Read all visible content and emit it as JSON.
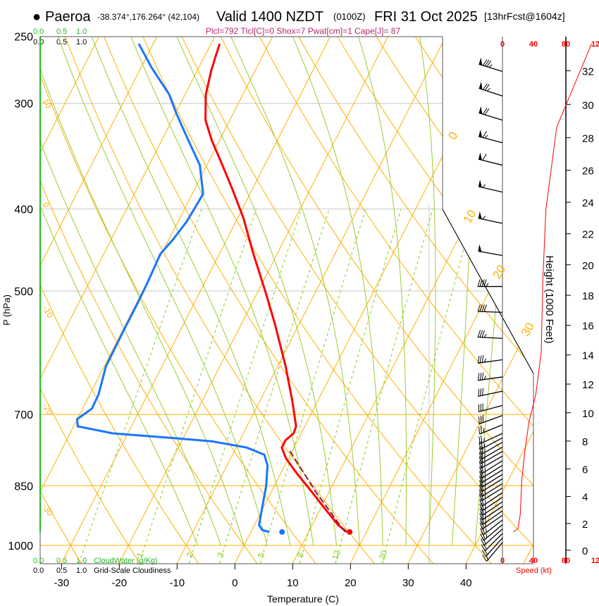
{
  "header": {
    "bullet": "●",
    "station": "Paeroa",
    "coords": "-38.374°,176.264° (42,104)",
    "valid": "Valid 1400 NZDT",
    "utc": "(0100Z)",
    "date": "FRI 31 Oct 2025",
    "forecast": "[13hrFcst@1604z]",
    "indices": "Plcl=792 Tlcl[C]=0 Shox=7 Pwat[cm]=1 Cape[J]= 87"
  },
  "cloud_scale": {
    "green_labels": [
      "0.0",
      "0.5",
      "1.0"
    ],
    "black_labels": [
      "0.0",
      "0.5",
      "1.0"
    ],
    "cloudwater_label": "CloudWater (g/Kg)",
    "cloudiness_label": "Grid-Scale Cloudiness"
  },
  "colors": {
    "temperature": "#ff0000",
    "dewpoint": "#1a75ff",
    "parcel": "#8b1a5a",
    "isotherm": "#ffb000",
    "moist_adiabat": "#99cc33",
    "mixing_ratio": "#88cc22",
    "indices": "#b5286a",
    "cloudwater": "#22aa22"
  },
  "chart_data": {
    "type": "skew-t",
    "xlabel": "Temperature (C)",
    "ylabel": "P (hPa)",
    "height_label": "Height (1000 Feet)",
    "speed_label": "Speed (kt)",
    "x_ticks": [
      -30,
      -20,
      -10,
      0,
      10,
      20,
      30,
      40
    ],
    "p_ticks": [
      250,
      300,
      400,
      500,
      700,
      850,
      1000
    ],
    "p_range": [
      250,
      1050
    ],
    "height_ticks": [
      0,
      2,
      4,
      6,
      8,
      10,
      12,
      14,
      16,
      18,
      20,
      22,
      24,
      26,
      28,
      30,
      32
    ],
    "speed_ticks": [
      "0",
      "40",
      "80",
      "12"
    ],
    "isotherm_labels": [
      {
        "T": 0,
        "p": 332
      },
      {
        "T": 10,
        "p": 417
      },
      {
        "T": 20,
        "p": 485
      },
      {
        "T": 30,
        "p": 567
      }
    ],
    "theta_labels": [
      "10",
      "0",
      "-10",
      "-20",
      "-30"
    ],
    "mixing_ratio_labels": [
      "1",
      "2",
      "3",
      "5",
      "8",
      "12",
      "20"
    ],
    "temperature": {
      "p": [
        255,
        274,
        293,
        314,
        332,
        355,
        380,
        410,
        452,
        500,
        547,
        614,
        676,
        723,
        737,
        751,
        766,
        788,
        819,
        859,
        902,
        946,
        964
      ],
      "T": [
        -48.5,
        -47.6,
        -46.4,
        -44.2,
        -41.3,
        -37.3,
        -33.3,
        -29.0,
        -24.1,
        -18.8,
        -14.2,
        -8.6,
        -4.3,
        -1.5,
        -1.3,
        -2.1,
        -2.1,
        -0.5,
        2.5,
        6.5,
        10.5,
        14.5,
        16.6
      ]
    },
    "dewpoint": {
      "p": [
        255,
        272,
        293,
        308,
        329,
        355,
        384,
        414,
        435,
        452,
        488,
        517,
        558,
        614,
        663,
        689,
        709,
        723,
        737,
        747,
        753,
        766,
        781,
        804,
        851,
        902,
        946,
        959,
        964
      ],
      "T": [
        -62.5,
        -58.2,
        -52.7,
        -49.9,
        -45.9,
        -41.2,
        -38.1,
        -38.5,
        -39.3,
        -40.2,
        -39.9,
        -39.8,
        -39.8,
        -39.7,
        -38.5,
        -38.4,
        -40.0,
        -39.3,
        -32.6,
        -21.2,
        -14.8,
        -8.2,
        -4.5,
        -3.0,
        -1.4,
        -0.2,
        0.8,
        1.8,
        3.2
      ]
    },
    "parcel": {
      "p": [
        964,
        868,
        769
      ],
      "T": [
        16.3,
        8.0,
        -0.8
      ]
    },
    "surface": {
      "p": 964,
      "T": 17.1,
      "Td": 5.4
    },
    "mixing_ratio_lines": [
      0.4,
      1,
      2,
      3,
      5,
      8,
      12,
      20
    ],
    "wind": [
      {
        "p": 275,
        "dir": 287,
        "spd": 85
      },
      {
        "p": 294,
        "dir": 288,
        "spd": 75
      },
      {
        "p": 314,
        "dir": 287,
        "spd": 70
      },
      {
        "p": 334,
        "dir": 285,
        "spd": 65
      },
      {
        "p": 355,
        "dir": 284,
        "spd": 60
      },
      {
        "p": 382,
        "dir": 283,
        "spd": 55
      },
      {
        "p": 416,
        "dir": 282,
        "spd": 55
      },
      {
        "p": 454,
        "dir": 280,
        "spd": 50
      },
      {
        "p": 494,
        "dir": 270,
        "spd": 45
      },
      {
        "p": 530,
        "dir": 272,
        "spd": 40
      },
      {
        "p": 569,
        "dir": 273,
        "spd": 35
      },
      {
        "p": 603,
        "dir": 262,
        "spd": 35
      },
      {
        "p": 632,
        "dir": 262,
        "spd": 35
      },
      {
        "p": 657,
        "dir": 258,
        "spd": 30
      },
      {
        "p": 683,
        "dir": 255,
        "spd": 30
      },
      {
        "p": 702,
        "dir": 250,
        "spd": 30
      },
      {
        "p": 720,
        "dir": 248,
        "spd": 25
      },
      {
        "p": 737,
        "dir": 245,
        "spd": 25
      },
      {
        "p": 746,
        "dir": 242,
        "spd": 25
      },
      {
        "p": 755,
        "dir": 240,
        "spd": 25
      },
      {
        "p": 765,
        "dir": 240,
        "spd": 25
      },
      {
        "p": 774,
        "dir": 240,
        "spd": 25
      },
      {
        "p": 784,
        "dir": 240,
        "spd": 25
      },
      {
        "p": 794,
        "dir": 238,
        "spd": 25
      },
      {
        "p": 804,
        "dir": 238,
        "spd": 25
      },
      {
        "p": 814,
        "dir": 238,
        "spd": 25
      },
      {
        "p": 824,
        "dir": 238,
        "spd": 25
      },
      {
        "p": 834,
        "dir": 238,
        "spd": 25
      },
      {
        "p": 845,
        "dir": 238,
        "spd": 25
      },
      {
        "p": 855,
        "dir": 238,
        "spd": 25
      },
      {
        "p": 866,
        "dir": 236,
        "spd": 25
      },
      {
        "p": 877,
        "dir": 236,
        "spd": 25
      },
      {
        "p": 888,
        "dir": 236,
        "spd": 25
      },
      {
        "p": 899,
        "dir": 236,
        "spd": 25
      },
      {
        "p": 910,
        "dir": 235,
        "spd": 25
      },
      {
        "p": 921,
        "dir": 235,
        "spd": 25
      },
      {
        "p": 933,
        "dir": 232,
        "spd": 25
      },
      {
        "p": 945,
        "dir": 230,
        "spd": 25
      },
      {
        "p": 956,
        "dir": 228,
        "spd": 20
      },
      {
        "p": 968,
        "dir": 225,
        "spd": 20
      },
      {
        "p": 980,
        "dir": 222,
        "spd": 20
      },
      {
        "p": 992,
        "dir": 220,
        "spd": 15
      }
    ],
    "wind_speed_profile": {
      "p": [
        255,
        320,
        401,
        488,
        591,
        663,
        716,
        773,
        835,
        919,
        955,
        964
      ],
      "spd": [
        115,
        70,
        56,
        52,
        50,
        43,
        34,
        29,
        25,
        23,
        20,
        14
      ]
    }
  }
}
